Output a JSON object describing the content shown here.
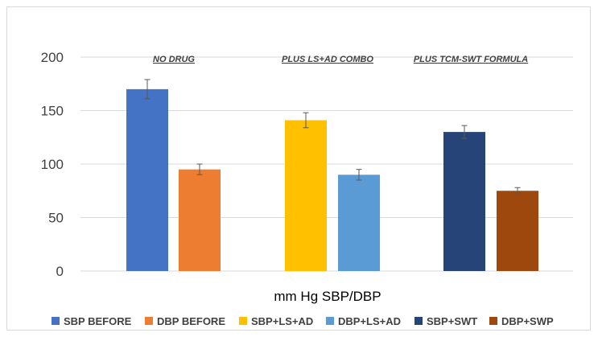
{
  "chart_data": {
    "type": "bar",
    "xlabel": "mm Hg SBP/DBP",
    "ylabel": "",
    "ylim": [
      0,
      200
    ],
    "yticks": [
      0,
      50,
      100,
      150,
      200
    ],
    "grid": true,
    "legend_position": "bottom",
    "groups": [
      {
        "label": "NO DRUG"
      },
      {
        "label": "PLUS LS+AD COMBO"
      },
      {
        "label": "PLUS TCM-SWT FORMULA"
      }
    ],
    "series": [
      {
        "name": "SBP BEFORE",
        "group": 0,
        "value": 170,
        "error": 9,
        "color": "#4472C4"
      },
      {
        "name": "DBP BEFORE",
        "group": 0,
        "value": 95,
        "error": 5,
        "color": "#ED7D31"
      },
      {
        "name": "SBP+LS+AD",
        "group": 1,
        "value": 141,
        "error": 7,
        "color": "#FFC000"
      },
      {
        "name": "DBP+LS+AD",
        "group": 1,
        "value": 90,
        "error": 5,
        "color": "#5B9BD5"
      },
      {
        "name": "SBP+SWT",
        "group": 2,
        "value": 130,
        "error": 6,
        "color": "#264478"
      },
      {
        "name": "DBP+SWP",
        "group": 2,
        "value": 75,
        "error": 3,
        "color": "#9E480E"
      }
    ]
  }
}
